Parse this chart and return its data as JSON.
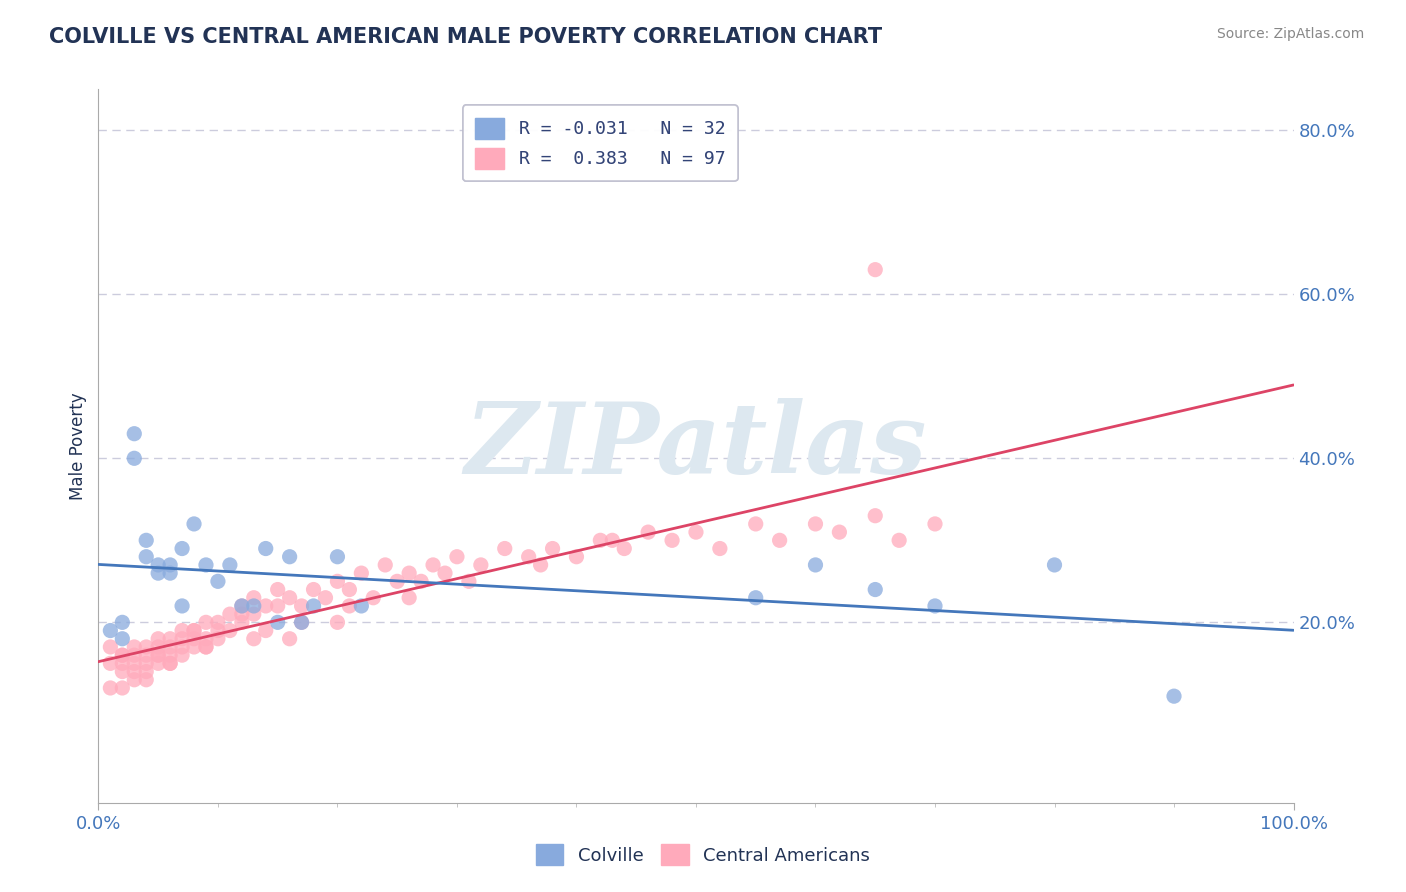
{
  "title": "COLVILLE VS CENTRAL AMERICAN MALE POVERTY CORRELATION CHART",
  "source": "Source: ZipAtlas.com",
  "ylabel": "Male Poverty",
  "xlim": [
    0.0,
    1.0
  ],
  "ylim": [
    -0.02,
    0.85
  ],
  "yticks": [
    0.2,
    0.4,
    0.6,
    0.8
  ],
  "ytick_labels": [
    "20.0%",
    "40.0%",
    "60.0%",
    "80.0%"
  ],
  "xtick_labels": [
    "0.0%",
    "100.0%"
  ],
  "legend_label_blue": "R = -0.031   N = 32",
  "legend_label_pink": "R =  0.383   N = 97",
  "blue_color": "#88aadd",
  "pink_color": "#ffaabb",
  "trend_blue_color": "#4477bb",
  "trend_pink_color": "#dd4466",
  "grid_color": "#ccccdd",
  "title_color": "#223355",
  "axis_label_color": "#4477bb",
  "source_color": "#888888",
  "watermark_text": "ZIPatlas",
  "watermark_color": "#dde8f0",
  "legend_text_color": "#334477",
  "colville_x": [
    0.01,
    0.02,
    0.02,
    0.03,
    0.03,
    0.04,
    0.04,
    0.05,
    0.05,
    0.06,
    0.06,
    0.07,
    0.07,
    0.08,
    0.09,
    0.1,
    0.11,
    0.12,
    0.13,
    0.14,
    0.15,
    0.16,
    0.17,
    0.18,
    0.2,
    0.22,
    0.55,
    0.6,
    0.65,
    0.7,
    0.8,
    0.9
  ],
  "colville_y": [
    0.19,
    0.2,
    0.18,
    0.43,
    0.4,
    0.3,
    0.28,
    0.26,
    0.27,
    0.27,
    0.26,
    0.29,
    0.22,
    0.32,
    0.27,
    0.25,
    0.27,
    0.22,
    0.22,
    0.29,
    0.2,
    0.28,
    0.2,
    0.22,
    0.28,
    0.22,
    0.23,
    0.27,
    0.24,
    0.22,
    0.27,
    0.11
  ],
  "central_x": [
    0.01,
    0.01,
    0.01,
    0.02,
    0.02,
    0.02,
    0.02,
    0.02,
    0.03,
    0.03,
    0.03,
    0.03,
    0.03,
    0.04,
    0.04,
    0.04,
    0.04,
    0.05,
    0.05,
    0.05,
    0.05,
    0.05,
    0.06,
    0.06,
    0.06,
    0.06,
    0.07,
    0.07,
    0.07,
    0.07,
    0.08,
    0.08,
    0.08,
    0.09,
    0.09,
    0.09,
    0.1,
    0.1,
    0.1,
    0.11,
    0.11,
    0.12,
    0.12,
    0.13,
    0.13,
    0.14,
    0.14,
    0.15,
    0.15,
    0.16,
    0.17,
    0.18,
    0.19,
    0.2,
    0.21,
    0.22,
    0.23,
    0.24,
    0.25,
    0.26,
    0.27,
    0.28,
    0.29,
    0.3,
    0.32,
    0.34,
    0.36,
    0.38,
    0.4,
    0.42,
    0.44,
    0.46,
    0.48,
    0.5,
    0.52,
    0.55,
    0.57,
    0.6,
    0.62,
    0.65,
    0.67,
    0.7,
    0.04,
    0.06,
    0.09,
    0.13,
    0.17,
    0.21,
    0.26,
    0.31,
    0.37,
    0.43,
    0.08,
    0.12,
    0.16,
    0.2,
    0.65
  ],
  "central_y": [
    0.15,
    0.12,
    0.17,
    0.16,
    0.14,
    0.15,
    0.12,
    0.16,
    0.14,
    0.16,
    0.15,
    0.13,
    0.17,
    0.15,
    0.16,
    0.17,
    0.14,
    0.16,
    0.15,
    0.18,
    0.17,
    0.16,
    0.17,
    0.16,
    0.18,
    0.15,
    0.18,
    0.17,
    0.19,
    0.16,
    0.18,
    0.17,
    0.19,
    0.18,
    0.2,
    0.17,
    0.19,
    0.2,
    0.18,
    0.21,
    0.19,
    0.2,
    0.22,
    0.21,
    0.23,
    0.22,
    0.19,
    0.22,
    0.24,
    0.23,
    0.22,
    0.24,
    0.23,
    0.25,
    0.24,
    0.26,
    0.23,
    0.27,
    0.25,
    0.26,
    0.25,
    0.27,
    0.26,
    0.28,
    0.27,
    0.29,
    0.28,
    0.29,
    0.28,
    0.3,
    0.29,
    0.31,
    0.3,
    0.31,
    0.29,
    0.32,
    0.3,
    0.32,
    0.31,
    0.33,
    0.3,
    0.32,
    0.13,
    0.15,
    0.17,
    0.18,
    0.2,
    0.22,
    0.23,
    0.25,
    0.27,
    0.3,
    0.19,
    0.21,
    0.18,
    0.2,
    0.63
  ]
}
